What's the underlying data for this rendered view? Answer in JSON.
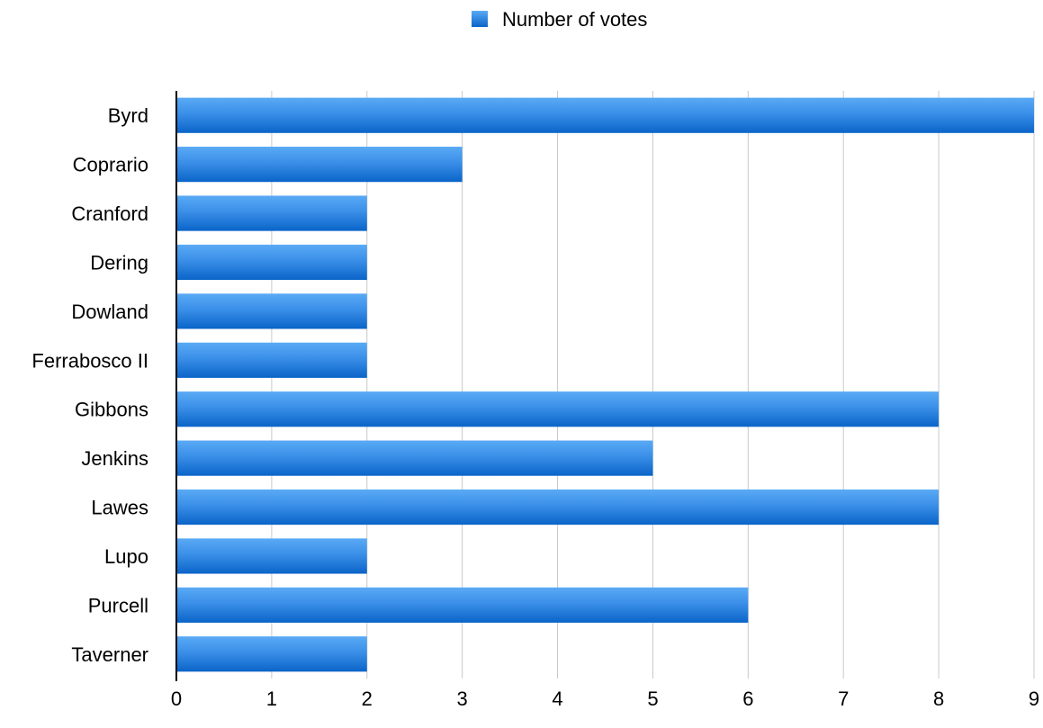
{
  "chart_data": {
    "type": "bar",
    "orientation": "horizontal",
    "categories": [
      "Byrd",
      "Coprario",
      "Cranford",
      "Dering",
      "Dowland",
      "Ferrabosco II",
      "Gibbons",
      "Jenkins",
      "Lawes",
      "Lupo",
      "Purcell",
      "Taverner"
    ],
    "series": [
      {
        "name": "Number of votes",
        "values": [
          9,
          3,
          2,
          2,
          2,
          2,
          8,
          5,
          8,
          2,
          6,
          2
        ]
      }
    ],
    "xlim": [
      0,
      9
    ],
    "xticks": [
      "0",
      "1",
      "2",
      "3",
      "4",
      "5",
      "6",
      "7",
      "8",
      "9"
    ],
    "grid": true,
    "legend": "top-center",
    "colors": {
      "bar_top": "#5aaaf5",
      "bar_bottom": "#0a64c8",
      "grid": "#c8c8c8",
      "axis": "#000000"
    }
  }
}
